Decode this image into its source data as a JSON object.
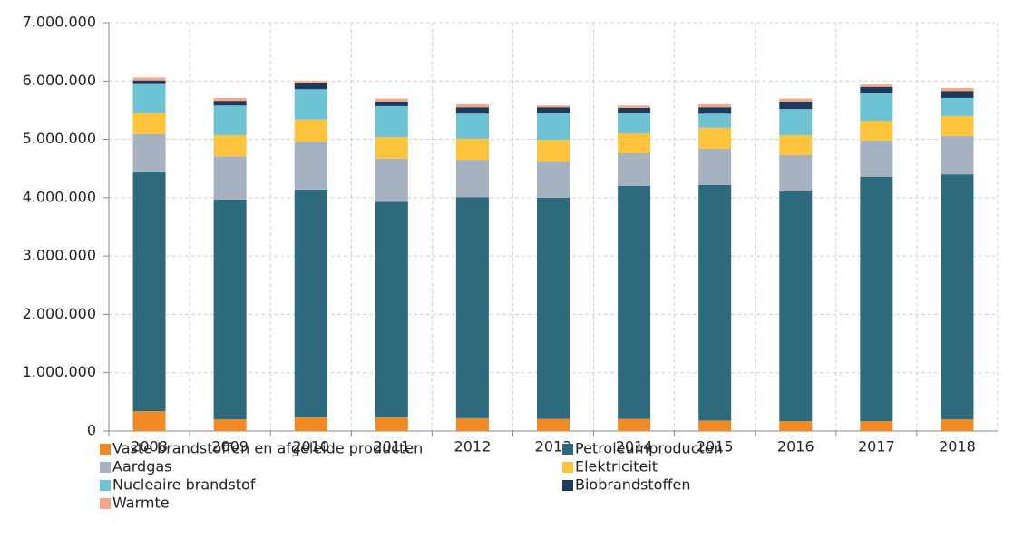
{
  "chart_data": {
    "type": "stacked_bar",
    "categories": [
      "2008",
      "2009",
      "2010",
      "2011",
      "2012",
      "2013",
      "2014",
      "2015",
      "2016",
      "2017",
      "2018"
    ],
    "series": [
      {
        "name": "Vaste brandstoffen en afgeleide producten",
        "color": "#f28a24",
        "values": [
          340000,
          200000,
          240000,
          240000,
          220000,
          210000,
          210000,
          180000,
          170000,
          170000,
          200000
        ]
      },
      {
        "name": "Petroleumproducten",
        "color": "#2e6a7e",
        "values": [
          4110000,
          3770000,
          3900000,
          3690000,
          3790000,
          3790000,
          3990000,
          4040000,
          3940000,
          4190000,
          4200000
        ]
      },
      {
        "name": "Aardgas",
        "color": "#a7b2c0",
        "values": [
          640000,
          740000,
          820000,
          740000,
          640000,
          620000,
          560000,
          620000,
          620000,
          620000,
          660000
        ]
      },
      {
        "name": "Elektriciteit",
        "color": "#fdc33b",
        "values": [
          370000,
          360000,
          380000,
          370000,
          360000,
          370000,
          340000,
          360000,
          340000,
          340000,
          340000
        ]
      },
      {
        "name": "Nucleaire brandstof",
        "color": "#6dc3d3",
        "values": [
          490000,
          510000,
          520000,
          530000,
          430000,
          470000,
          360000,
          240000,
          450000,
          470000,
          310000
        ]
      },
      {
        "name": "Biobrandstoffen",
        "color": "#1b3a5c",
        "values": [
          60000,
          80000,
          100000,
          80000,
          110000,
          90000,
          80000,
          110000,
          130000,
          110000,
          120000
        ]
      },
      {
        "name": "Warmte",
        "color": "#f5a78a",
        "values": [
          50000,
          50000,
          40000,
          50000,
          50000,
          30000,
          40000,
          50000,
          50000,
          40000,
          50000
        ]
      }
    ],
    "ylim": [
      0,
      7000000
    ],
    "yticks": [
      0,
      {
        "value": 1000000,
        "label": "1.000.000"
      },
      {
        "value": 2000000,
        "label": "2.000.000"
      },
      {
        "value": 3000000,
        "label": "3.000.000"
      },
      {
        "value": 4000000,
        "label": "4.000.000"
      },
      {
        "value": 5000000,
        "label": "5.000.000"
      },
      {
        "value": 6000000,
        "label": "6.000.000"
      },
      {
        "value": 7000000,
        "label": "7.000.000"
      }
    ],
    "grid": true,
    "legend": "bottom"
  }
}
